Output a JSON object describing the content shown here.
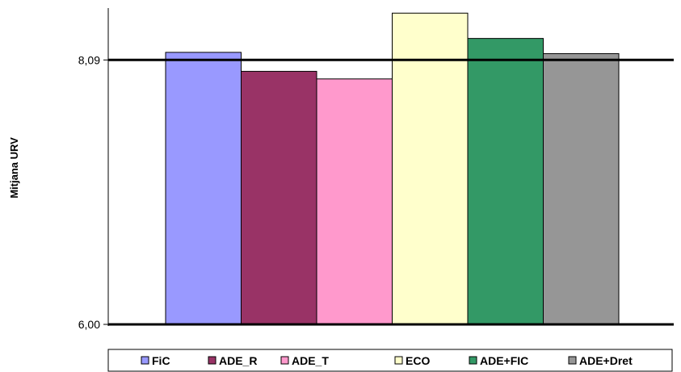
{
  "chart_data": {
    "type": "bar",
    "title": "",
    "xlabel": "",
    "ylabel": "Mitjana URV",
    "ylim": [
      6.0,
      8.5
    ],
    "yticks": [
      {
        "value": 6.0,
        "label": "6,00"
      },
      {
        "value": 8.09,
        "label": "8,09"
      }
    ],
    "grid": false,
    "legend_position": "bottom",
    "categories": [
      "FiC",
      "ADE_R",
      "ADE_T",
      "ECO",
      "ADE+FIC",
      "ADE+Dret"
    ],
    "values": [
      8.15,
      8.0,
      7.94,
      8.46,
      8.26,
      8.14
    ],
    "colors": [
      "#9999FF",
      "#993366",
      "#FF99CC",
      "#FFFFCC",
      "#339966",
      "#969696"
    ]
  }
}
